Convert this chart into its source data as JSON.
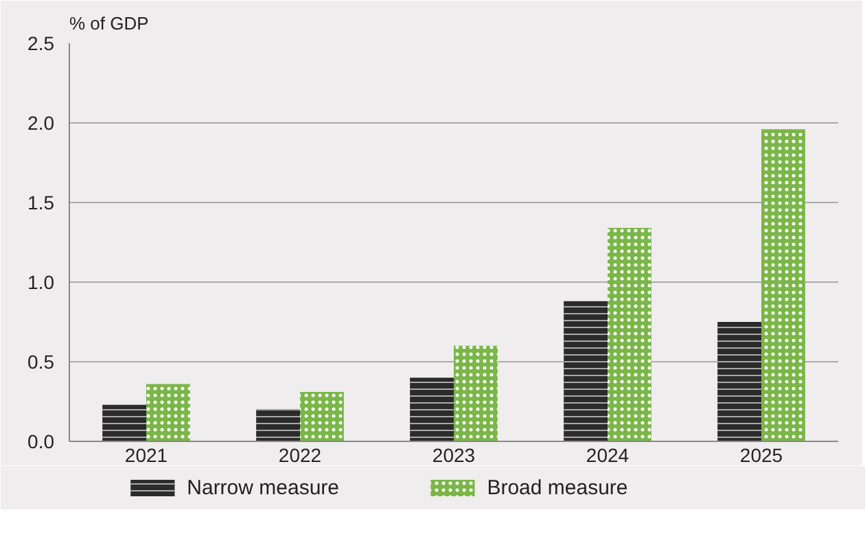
{
  "chart_data": {
    "type": "bar",
    "ylabel": "% of GDP",
    "categories": [
      "2021",
      "2022",
      "2023",
      "2024",
      "2025"
    ],
    "series": [
      {
        "name": "Narrow measure",
        "color": "#2b2b2b",
        "values": [
          0.23,
          0.2,
          0.4,
          0.88,
          0.75
        ]
      },
      {
        "name": "Broad measure",
        "color": "#7ab648",
        "values": [
          0.36,
          0.31,
          0.6,
          1.34,
          1.96
        ]
      }
    ],
    "ylim": [
      0,
      2.5
    ],
    "yticks": [
      {
        "value": 0,
        "label": "0.0"
      },
      {
        "value": 0.5,
        "label": "0.5"
      },
      {
        "value": 1,
        "label": "1.0"
      },
      {
        "value": 1.5,
        "label": "1.5"
      },
      {
        "value": 2,
        "label": "2.0"
      },
      {
        "value": 2.5,
        "label": "2.5"
      }
    ],
    "grid": "y",
    "legend": "bottom"
  }
}
